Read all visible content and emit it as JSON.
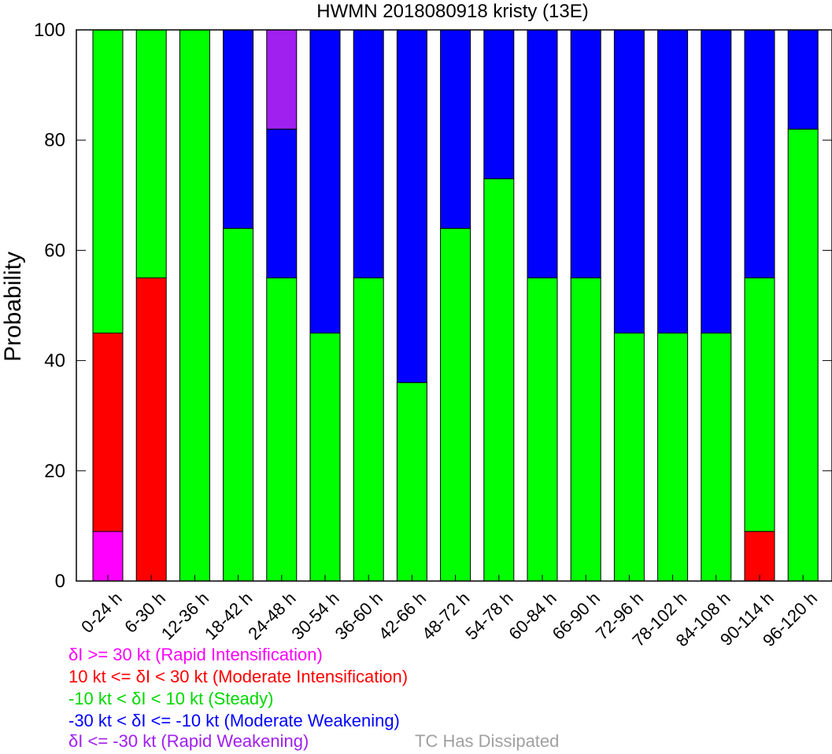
{
  "chart_data": {
    "type": "bar",
    "stacked": true,
    "title": "HWMN 2018080918 kristy (13E)",
    "xlabel": "",
    "ylabel": "Probability",
    "ylim": [
      0,
      100
    ],
    "yticks": [
      0,
      20,
      40,
      60,
      80,
      100
    ],
    "grid": false,
    "categories": [
      "0-24 h",
      "6-30 h",
      "12-36 h",
      "18-42 h",
      "24-48 h",
      "30-54 h",
      "36-60 h",
      "42-66 h",
      "48-72 h",
      "54-78 h",
      "60-84 h",
      "66-90 h",
      "72-96 h",
      "78-102 h",
      "84-108 h",
      "90-114 h",
      "96-120 h"
    ],
    "series": [
      {
        "name": "δI >= 30 kt (Rapid Intensification)",
        "color": "#ff00ff",
        "values": [
          9,
          0,
          0,
          0,
          0,
          0,
          0,
          0,
          0,
          0,
          0,
          0,
          0,
          0,
          0,
          0,
          0
        ]
      },
      {
        "name": "10 kt <= δI < 30 kt (Moderate Intensification)",
        "color": "#ff0000",
        "values": [
          36,
          55,
          0,
          0,
          0,
          0,
          0,
          0,
          0,
          0,
          0,
          0,
          0,
          0,
          0,
          9,
          0
        ]
      },
      {
        "name": "-10 kt < δI < 10 kt (Steady)",
        "color": "#00ff00",
        "values": [
          55,
          45,
          100,
          64,
          55,
          45,
          55,
          36,
          64,
          73,
          55,
          55,
          45,
          45,
          45,
          46,
          82
        ]
      },
      {
        "name": "-30 kt < δI <= -10 kt (Moderate Weakening)",
        "color": "#0000ff",
        "values": [
          0,
          0,
          0,
          36,
          27,
          55,
          45,
          64,
          36,
          27,
          45,
          45,
          55,
          55,
          55,
          45,
          18
        ]
      },
      {
        "name": "δI <= -30 kt (Rapid Weakening)",
        "color": "#a020f0",
        "values": [
          0,
          0,
          0,
          0,
          18,
          0,
          0,
          0,
          0,
          0,
          0,
          0,
          0,
          0,
          0,
          0,
          0
        ]
      }
    ]
  },
  "legend": {
    "rapid_intensification": "δI >= 30 kt (Rapid Intensification)",
    "moderate_intensification": "10 kt <= δI < 30 kt (Moderate Intensification)",
    "steady": "-10 kt < δI < 10 kt (Steady)",
    "moderate_weakening": "-30 kt < δI <= -10 kt (Moderate Weakening)",
    "rapid_weakening": "δI <= -30 kt (Rapid Weakening)",
    "dissipated": "TC Has Dissipated",
    "dissipated_color": "#a0a0a0"
  }
}
